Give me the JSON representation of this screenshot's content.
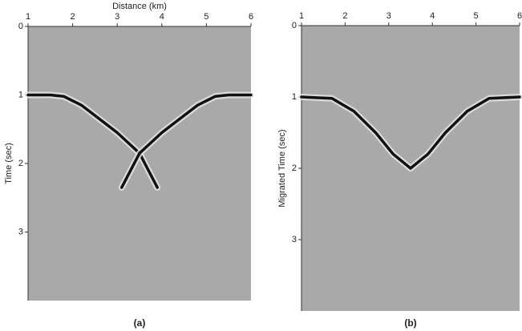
{
  "chart_data": [
    {
      "type": "line",
      "x_label": "Distance (km)",
      "y_label": "Time (sec)",
      "caption": "(a)",
      "xlim": [
        1,
        6
      ],
      "xticks": [
        1,
        2,
        3,
        4,
        5,
        6
      ],
      "ylim": [
        0,
        4
      ],
      "yticks": [
        0,
        1,
        2,
        3
      ],
      "y_inverted": true,
      "background": "#a9a9a9",
      "series": [
        {
          "color": "#111111",
          "x": [
            1,
            1.5,
            1.8,
            2.2,
            2.6,
            3.0,
            3.5,
            3.9
          ],
          "values": [
            1,
            1,
            1.02,
            1.15,
            1.35,
            1.55,
            1.85,
            2.35
          ]
        },
        {
          "color": "#111111",
          "x": [
            6,
            5.5,
            5.2,
            4.8,
            4.4,
            4.0,
            3.5,
            3.1
          ],
          "values": [
            1,
            1,
            1.02,
            1.15,
            1.35,
            1.55,
            1.85,
            2.35
          ]
        }
      ]
    },
    {
      "type": "line",
      "y_label": "Migrated Time (sec)",
      "caption": "(b)",
      "xlim": [
        1,
        6
      ],
      "xticks": [
        1,
        2,
        3,
        4,
        5,
        6
      ],
      "ylim": [
        0,
        4
      ],
      "yticks": [
        0,
        1,
        2,
        3
      ],
      "y_inverted": true,
      "background": "#a9a9a9",
      "series": [
        {
          "color": "#111111",
          "x": [
            1,
            1.7,
            2.2,
            2.7,
            3.1,
            3.5,
            3.9,
            4.3,
            4.8,
            5.3,
            6
          ],
          "values": [
            1,
            1.02,
            1.2,
            1.5,
            1.8,
            2.0,
            1.8,
            1.5,
            1.2,
            1.02,
            1
          ]
        }
      ]
    }
  ]
}
